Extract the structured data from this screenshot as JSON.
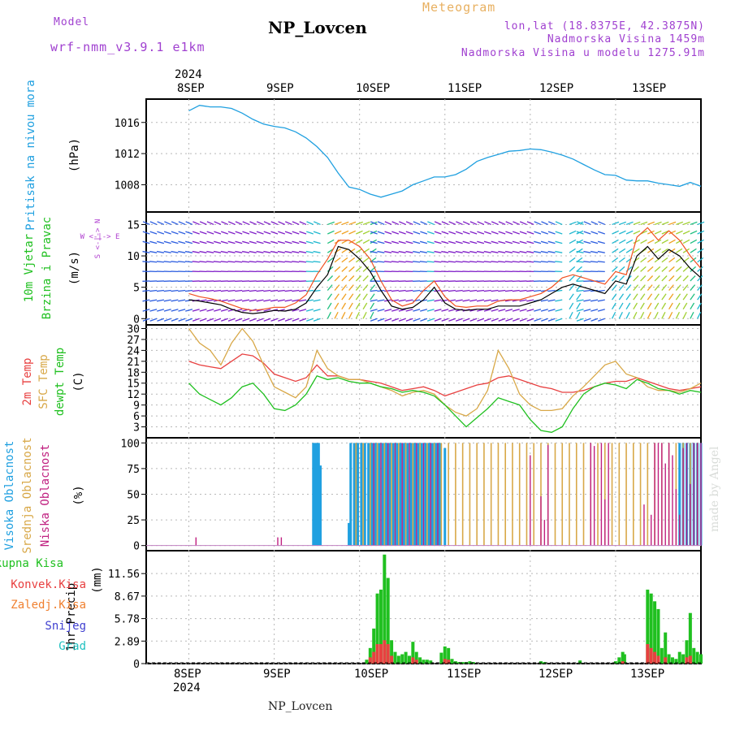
{
  "header": {
    "model_label": "Model",
    "model_name": "wrf-nmm_v3.9.1 e1km",
    "station_title": "NP_Lovcen",
    "meteogram_label": "Meteogram",
    "lonlat": "lon,lat (18.8375E, 42.3875N)",
    "elevation": "Nadmorska Visina 1459m",
    "model_elevation": "Nadmorska Visina u modelu 1275.91m",
    "footer_station": "NP_Lovcen",
    "watermark": "made by Angel"
  },
  "time_axis": {
    "year": "2024",
    "day_labels": [
      "8SEP",
      "9SEP",
      "10SEP",
      "11SEP",
      "12SEP",
      "13SEP"
    ]
  },
  "colors": {
    "pressure": "#20a0e0",
    "temp2m": "#e84040",
    "sfc_temp": "#d8a848",
    "dewpoint": "#20c020",
    "high_cloud": "#20a0e0",
    "mid_cloud": "#d8a848",
    "low_cloud": "#c02080",
    "total_rain": "#20c020",
    "conv_rain": "#e84040",
    "freezing_rain": "#f08030",
    "snow": "#4040d0",
    "hail": "#20c0c0",
    "wind_speed": "#000000",
    "gust": "#f05020"
  },
  "chart_data": [
    {
      "type": "line",
      "name": "pressure",
      "ylabel": "Pritisak na nivou mora",
      "unit": "(hPa)",
      "ylim": [
        1004.5,
        1019
      ],
      "yticks": [
        1008,
        1012,
        1016
      ],
      "x_hours": [
        0,
        3,
        6,
        9,
        12,
        15,
        18,
        21,
        24,
        27,
        30,
        33,
        36,
        39,
        42,
        45,
        48,
        51,
        54,
        57,
        60,
        63,
        66,
        69,
        72,
        75,
        78,
        81,
        84,
        87,
        90,
        93,
        96,
        99,
        102,
        105,
        108,
        111,
        114,
        117,
        120,
        123,
        126,
        129,
        132,
        135,
        138,
        141,
        144
      ],
      "values": [
        1017.5,
        1018.2,
        1018.0,
        1018.0,
        1017.8,
        1017.2,
        1016.4,
        1015.8,
        1015.5,
        1015.3,
        1014.8,
        1014.0,
        1012.9,
        1011.5,
        1009.5,
        1007.7,
        1007.4,
        1006.8,
        1006.4,
        1006.8,
        1007.2,
        1008.0,
        1008.5,
        1009.0,
        1009.0,
        1009.3,
        1010.0,
        1011.0,
        1011.5,
        1011.9,
        1012.3,
        1012.4,
        1012.6,
        1012.5,
        1012.2,
        1011.8,
        1011.3,
        1010.6,
        1009.9,
        1009.3,
        1009.2,
        1008.6,
        1008.5,
        1008.5,
        1008.2,
        1008.0,
        1007.8,
        1008.3,
        1007.8
      ]
    },
    {
      "type": "line",
      "name": "wind",
      "ylabel": "10m Vjetar Brzina i Pravac",
      "unit": "(m/s)",
      "compass": "W <-|-> E",
      "compass_ns": "S <-|-> N",
      "ylim": [
        -1,
        17
      ],
      "yticks": [
        0,
        5,
        10,
        15
      ],
      "x_hours": [
        0,
        3,
        6,
        9,
        12,
        15,
        18,
        21,
        24,
        27,
        30,
        33,
        36,
        39,
        42,
        45,
        48,
        51,
        54,
        57,
        60,
        63,
        66,
        69,
        72,
        75,
        78,
        81,
        84,
        87,
        90,
        93,
        96,
        99,
        102,
        105,
        108,
        111,
        114,
        117,
        120,
        123,
        126,
        129,
        132,
        135,
        138,
        141,
        144
      ],
      "speed": [
        3.0,
        2.8,
        2.5,
        2.2,
        1.5,
        1.0,
        0.8,
        1.0,
        1.3,
        1.2,
        1.5,
        2.5,
        5.0,
        7.0,
        11.5,
        11.0,
        9.5,
        7.5,
        4.5,
        2.0,
        1.5,
        1.8,
        3.0,
        5.0,
        2.5,
        1.5,
        1.3,
        1.5,
        1.5,
        2.0,
        2.0,
        2.0,
        2.5,
        3.0,
        4.0,
        5.0,
        5.5,
        5.0,
        4.5,
        4.0,
        6.0,
        5.5,
        10.0,
        11.5,
        9.5,
        11.0,
        10.0,
        8.0,
        6.5
      ],
      "gust": [
        4.0,
        3.5,
        3.2,
        2.8,
        2.2,
        1.6,
        1.3,
        1.5,
        1.8,
        1.8,
        2.5,
        3.8,
        7.0,
        9.5,
        12.5,
        12.5,
        11.5,
        9.5,
        6.0,
        3.0,
        2.0,
        2.5,
        4.5,
        6.0,
        3.5,
        2.0,
        1.8,
        2.0,
        2.0,
        2.8,
        3.0,
        3.0,
        3.5,
        4.0,
        5.0,
        6.5,
        7.0,
        6.5,
        6.0,
        5.5,
        7.5,
        7.0,
        13.0,
        14.5,
        12.5,
        14.0,
        12.5,
        10.0,
        8.0
      ]
    },
    {
      "type": "line",
      "name": "temperature",
      "ylabel": [
        "2m Temp",
        "SFC Temp",
        "dewpt Temp"
      ],
      "unit": "(C)",
      "ylim": [
        0,
        31
      ],
      "yticks": [
        3,
        6,
        9,
        12,
        15,
        18,
        21,
        24,
        27,
        30
      ],
      "x_hours": [
        0,
        3,
        6,
        9,
        12,
        15,
        18,
        21,
        24,
        27,
        30,
        33,
        36,
        39,
        42,
        45,
        48,
        51,
        54,
        57,
        60,
        63,
        66,
        69,
        72,
        75,
        78,
        81,
        84,
        87,
        90,
        93,
        96,
        99,
        102,
        105,
        108,
        111,
        114,
        117,
        120,
        123,
        126,
        129,
        132,
        135,
        138,
        141,
        144
      ],
      "series": [
        {
          "name": "2m Temp",
          "values": [
            21,
            20,
            19.5,
            19,
            21,
            23,
            22.5,
            20.5,
            17.5,
            16.5,
            15.5,
            16.5,
            20,
            17,
            17,
            16,
            16,
            15.5,
            15,
            14,
            13,
            13.5,
            14,
            13,
            11.5,
            12.5,
            13.5,
            14.5,
            15,
            16.5,
            17,
            16,
            15,
            14,
            13.5,
            12.5,
            12.5,
            13,
            14,
            15,
            15.5,
            15.5,
            16.5,
            15.5,
            14.5,
            13.5,
            13,
            13.5,
            14
          ]
        },
        {
          "name": "SFC Temp",
          "values": [
            30,
            26,
            24,
            20,
            26,
            30,
            26.5,
            20,
            14,
            12.5,
            11,
            14,
            24,
            19,
            17,
            16,
            16,
            15,
            14,
            13,
            11.5,
            12.5,
            13,
            12,
            9,
            7,
            6,
            8,
            13,
            24,
            19,
            12,
            9,
            7.5,
            7.5,
            8,
            11.5,
            14,
            17,
            20,
            21,
            17.5,
            16.5,
            14,
            13,
            13,
            12.5,
            13.5,
            15
          ]
        },
        {
          "name": "dewpt Temp",
          "values": [
            15,
            12,
            10.5,
            9,
            11,
            14,
            15,
            12,
            8,
            7.5,
            9,
            12,
            17,
            16,
            16.5,
            15.5,
            15,
            15,
            14,
            13.5,
            12.5,
            13,
            12.5,
            11.5,
            9,
            6,
            3,
            5.5,
            8,
            11,
            10,
            9,
            5,
            2,
            1.5,
            3,
            8,
            12,
            14,
            15,
            14.5,
            13.5,
            16,
            15,
            13.5,
            13,
            12,
            13,
            12.5
          ]
        }
      ]
    },
    {
      "type": "bar",
      "name": "cloud_cover",
      "ylabel": [
        "Visoka Oblacnost",
        "Srednja Oblacnost",
        "Niska Oblacnost"
      ],
      "unit": "(%)",
      "ylim": [
        -5,
        105
      ],
      "yticks": [
        0,
        25,
        50,
        75,
        100
      ],
      "series": [
        {
          "name": "Visoka Oblacnost",
          "x_hours": [
            35,
            35.5,
            36,
            36.5,
            37,
            45,
            45.5,
            46.5,
            47.5,
            48.5,
            49.5,
            50.5,
            51.5,
            52.5,
            53.5,
            54.5,
            55.5,
            56.5,
            57.5,
            58.5,
            59.5,
            60.5,
            61.5,
            62.5,
            63.5,
            64.5,
            65.5,
            66.5,
            67.5,
            68.5,
            69.5,
            70,
            70.5,
            72,
            138,
            139,
            140,
            141,
            142,
            143,
            144
          ],
          "values": [
            100,
            100,
            100,
            100,
            78,
            22,
            100,
            100,
            100,
            100,
            100,
            100,
            100,
            100,
            100,
            100,
            100,
            100,
            100,
            100,
            100,
            100,
            100,
            100,
            100,
            100,
            100,
            100,
            100,
            100,
            100,
            100,
            100,
            95,
            100,
            100,
            100,
            100,
            100,
            100,
            100
          ]
        },
        {
          "name": "Srednja Oblacnost",
          "x_hours": [
            47,
            49,
            51,
            53,
            55,
            57,
            59,
            61,
            63,
            65,
            67,
            69,
            71,
            73,
            75,
            77,
            79,
            81,
            83,
            85,
            87,
            89,
            91,
            93,
            95,
            97,
            99,
            101,
            103,
            105,
            107,
            109,
            111,
            113,
            115,
            117,
            119,
            121,
            123,
            125,
            127,
            129,
            131,
            133,
            135,
            137,
            139,
            141,
            143
          ],
          "values": [
            100,
            100,
            100,
            100,
            100,
            100,
            100,
            100,
            100,
            100,
            100,
            100,
            100,
            100,
            100,
            100,
            100,
            100,
            100,
            100,
            100,
            100,
            100,
            100,
            100,
            100,
            100,
            100,
            100,
            100,
            100,
            100,
            100,
            100,
            100,
            100,
            100,
            100,
            100,
            100,
            100,
            100,
            100,
            100,
            100,
            100,
            100,
            100,
            100
          ]
        },
        {
          "name": "Niska Oblacnost",
          "x_hours": [
            2,
            25,
            26,
            52,
            54,
            56,
            58,
            60,
            62,
            64,
            66,
            68,
            70,
            96,
            99,
            100,
            101,
            113,
            114,
            116,
            117,
            118,
            128,
            130,
            131,
            132,
            133,
            134,
            135,
            136,
            137,
            138,
            139,
            140,
            141,
            142,
            143,
            144
          ],
          "values": [
            8,
            8,
            8,
            100,
            100,
            100,
            100,
            100,
            100,
            100,
            100,
            100,
            100,
            88,
            48,
            25,
            98,
            100,
            97,
            100,
            45,
            100,
            40,
            30,
            100,
            100,
            100,
            80,
            100,
            88,
            55,
            30,
            95,
            100,
            60,
            100,
            100,
            100
          ]
        }
      ]
    },
    {
      "type": "bar",
      "name": "precipitation",
      "ylabel": "1hr Precip",
      "unit": "(mm)",
      "legend": [
        "Ukupna Kisa",
        "Konvek.Kisa",
        "Zaledj.Kisa",
        "Snijeg",
        "Grad"
      ],
      "ylim": [
        0,
        14.5
      ],
      "yticks": [
        0,
        2.89,
        5.78,
        8.67,
        11.56
      ],
      "series": [
        {
          "name": "Ukupna Kisa",
          "x_hours": [
            50,
            51,
            52,
            53,
            54,
            55,
            56,
            57,
            58,
            59,
            60,
            61,
            62,
            63,
            64,
            65,
            66,
            67,
            68,
            71,
            72,
            73,
            74,
            75,
            76,
            77,
            78,
            79,
            80,
            99,
            100,
            110,
            120,
            121,
            122,
            122.5,
            129,
            130,
            131,
            132,
            133,
            134,
            135,
            136,
            137,
            138,
            139,
            140,
            141,
            142,
            143,
            144
          ],
          "values": [
            0.5,
            2.0,
            4.5,
            9.0,
            9.5,
            14.0,
            11.0,
            3.0,
            1.5,
            1.0,
            1.2,
            1.5,
            1.0,
            2.8,
            1.5,
            0.8,
            0.5,
            0.5,
            0.4,
            1.4,
            2.2,
            2.0,
            0.6,
            0.3,
            0.2,
            0.2,
            0.2,
            0.3,
            0.2,
            0.3,
            0.2,
            0.4,
            0.3,
            0.8,
            1.5,
            1.2,
            9.5,
            9.0,
            8.0,
            7.0,
            2.0,
            4.0,
            1.2,
            0.8,
            0.6,
            1.5,
            1.2,
            3.0,
            6.5,
            2.0,
            1.5,
            1.2
          ]
        },
        {
          "name": "Konvek.Kisa",
          "x_hours": [
            51,
            52,
            53,
            54,
            55,
            56,
            57,
            63,
            64,
            72,
            73,
            122,
            129,
            130,
            131,
            132,
            134,
            140,
            141
          ],
          "values": [
            0.8,
            1.5,
            2.5,
            2.5,
            3.0,
            2.5,
            1.0,
            0.8,
            0.5,
            0.6,
            0.5,
            0.3,
            2.5,
            2.0,
            1.5,
            1.0,
            0.8,
            0.8,
            1.0
          ]
        }
      ]
    }
  ]
}
